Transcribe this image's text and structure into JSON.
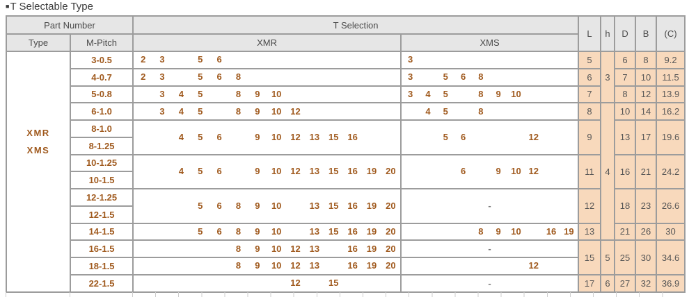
{
  "title": {
    "bullet": "■",
    "text": "T Selectable Type"
  },
  "colors": {
    "accent_text": "#a05a1e",
    "value_cell_bg": "#f8d9bc",
    "header_bg": "#e6e6e6",
    "border": "#9c9c9c",
    "header_text": "#4a4a4a",
    "value_text": "#565656"
  },
  "table": {
    "headers": {
      "part_number": "Part Number",
      "t_selection": "T Selection",
      "type": "Type",
      "m_pitch": "M-Pitch",
      "xmr": "XMR",
      "xms": "XMS",
      "L": "L",
      "h": "h",
      "D": "D",
      "B": "B",
      "C": "(C)"
    },
    "slot_columns": {
      "xmr": [
        2,
        3,
        4,
        5,
        6,
        8,
        9,
        10,
        12,
        13,
        15,
        16,
        19,
        20
      ],
      "xms": [
        3,
        4,
        5,
        6,
        8,
        9,
        10,
        12,
        16,
        19
      ]
    },
    "rows": [
      {
        "cells": [
          {
            "kind": "type",
            "rowspan": 14,
            "lines": [
              "XMR",
              "XMS"
            ]
          },
          {
            "kind": "mpitch",
            "text": "3-0.5"
          },
          {
            "kind": "slots",
            "grid": "xmr",
            "values": [
              2,
              3,
              5,
              6
            ]
          },
          {
            "kind": "slots",
            "grid": "xms",
            "values": [
              3
            ]
          },
          {
            "kind": "num",
            "col": "L",
            "text": "5"
          },
          {
            "kind": "num",
            "col": "h",
            "text": "3",
            "rowspan": 3
          },
          {
            "kind": "num",
            "col": "D",
            "text": "6"
          },
          {
            "kind": "num",
            "col": "B",
            "text": "8"
          },
          {
            "kind": "num",
            "col": "C",
            "text": "9.2"
          }
        ]
      },
      {
        "cells": [
          {
            "kind": "mpitch",
            "text": "4-0.7"
          },
          {
            "kind": "slots",
            "grid": "xmr",
            "values": [
              2,
              3,
              5,
              6,
              8
            ]
          },
          {
            "kind": "slots",
            "grid": "xms",
            "values": [
              3,
              5,
              6,
              8
            ]
          },
          {
            "kind": "num",
            "col": "L",
            "text": "6"
          },
          {
            "kind": "num",
            "col": "D",
            "text": "7"
          },
          {
            "kind": "num",
            "col": "B",
            "text": "10"
          },
          {
            "kind": "num",
            "col": "C",
            "text": "11.5"
          }
        ]
      },
      {
        "cells": [
          {
            "kind": "mpitch",
            "text": "5-0.8"
          },
          {
            "kind": "slots",
            "grid": "xmr",
            "values": [
              3,
              4,
              5,
              8,
              9,
              10
            ]
          },
          {
            "kind": "slots",
            "grid": "xms",
            "values": [
              3,
              4,
              5,
              8,
              9,
              10
            ]
          },
          {
            "kind": "num",
            "col": "L",
            "text": "7"
          },
          {
            "kind": "num",
            "col": "D",
            "text": "8"
          },
          {
            "kind": "num",
            "col": "B",
            "text": "12"
          },
          {
            "kind": "num",
            "col": "C",
            "text": "13.9"
          }
        ]
      },
      {
        "cells": [
          {
            "kind": "mpitch",
            "text": "6-1.0"
          },
          {
            "kind": "slots",
            "grid": "xmr",
            "values": [
              3,
              4,
              5,
              8,
              9,
              10,
              12
            ]
          },
          {
            "kind": "slots",
            "grid": "xms",
            "values": [
              4,
              5,
              8
            ]
          },
          {
            "kind": "num",
            "col": "L",
            "text": "8"
          },
          {
            "kind": "num",
            "col": "h",
            "text": "4",
            "rowspan": 8
          },
          {
            "kind": "num",
            "col": "D",
            "text": "10"
          },
          {
            "kind": "num",
            "col": "B",
            "text": "14"
          },
          {
            "kind": "num",
            "col": "C",
            "text": "16.2"
          }
        ]
      },
      {
        "cells": [
          {
            "kind": "mpitch",
            "text": "8-1.0"
          },
          {
            "kind": "slots",
            "grid": "xmr",
            "rowspan": 2,
            "values": [
              4,
              5,
              6,
              9,
              10,
              12,
              13,
              15,
              16
            ]
          },
          {
            "kind": "slots",
            "grid": "xms",
            "rowspan": 2,
            "values": [
              5,
              6,
              12
            ]
          },
          {
            "kind": "num",
            "col": "L",
            "text": "9",
            "rowspan": 2
          },
          {
            "kind": "num",
            "col": "D",
            "text": "13",
            "rowspan": 2
          },
          {
            "kind": "num",
            "col": "B",
            "text": "17",
            "rowspan": 2
          },
          {
            "kind": "num",
            "col": "C",
            "text": "19.6",
            "rowspan": 2
          }
        ]
      },
      {
        "cells": [
          {
            "kind": "mpitch",
            "text": "8-1.25"
          }
        ]
      },
      {
        "cells": [
          {
            "kind": "mpitch",
            "text": "10-1.25"
          },
          {
            "kind": "slots",
            "grid": "xmr",
            "rowspan": 2,
            "values": [
              4,
              5,
              6,
              9,
              10,
              12,
              13,
              15,
              16,
              19,
              20
            ]
          },
          {
            "kind": "slots",
            "grid": "xms",
            "rowspan": 2,
            "values": [
              6,
              9,
              10,
              12
            ]
          },
          {
            "kind": "num",
            "col": "L",
            "text": "11",
            "rowspan": 2
          },
          {
            "kind": "num",
            "col": "D",
            "text": "16",
            "rowspan": 2
          },
          {
            "kind": "num",
            "col": "B",
            "text": "21",
            "rowspan": 2
          },
          {
            "kind": "num",
            "col": "C",
            "text": "24.2",
            "rowspan": 2
          }
        ]
      },
      {
        "cells": [
          {
            "kind": "mpitch",
            "text": "10-1.5"
          }
        ]
      },
      {
        "cells": [
          {
            "kind": "mpitch",
            "text": "12-1.25"
          },
          {
            "kind": "slots",
            "grid": "xmr",
            "rowspan": 2,
            "values": [
              5,
              6,
              8,
              9,
              10,
              13,
              15,
              16,
              19,
              20
            ]
          },
          {
            "kind": "dash",
            "grid": "xms",
            "rowspan": 2,
            "text": "-"
          },
          {
            "kind": "num",
            "col": "L",
            "text": "12",
            "rowspan": 2
          },
          {
            "kind": "num",
            "col": "D",
            "text": "18",
            "rowspan": 2
          },
          {
            "kind": "num",
            "col": "B",
            "text": "23",
            "rowspan": 2
          },
          {
            "kind": "num",
            "col": "C",
            "text": "26.6",
            "rowspan": 2
          }
        ]
      },
      {
        "cells": [
          {
            "kind": "mpitch",
            "text": "12-1.5"
          }
        ]
      },
      {
        "cells": [
          {
            "kind": "mpitch",
            "text": "14-1.5"
          },
          {
            "kind": "slots",
            "grid": "xmr",
            "values": [
              5,
              6,
              8,
              9,
              10,
              13,
              15,
              16,
              19,
              20
            ]
          },
          {
            "kind": "slots",
            "grid": "xms",
            "values": [
              8,
              9,
              10,
              16,
              19
            ]
          },
          {
            "kind": "num",
            "col": "L",
            "text": "13"
          },
          {
            "kind": "num",
            "col": "D",
            "text": "21"
          },
          {
            "kind": "num",
            "col": "B",
            "text": "26"
          },
          {
            "kind": "num",
            "col": "C",
            "text": "30"
          }
        ]
      },
      {
        "cells": [
          {
            "kind": "mpitch",
            "text": "16-1.5"
          },
          {
            "kind": "slots",
            "grid": "xmr",
            "values": [
              8,
              9,
              10,
              12,
              13,
              16,
              19,
              20
            ]
          },
          {
            "kind": "dash",
            "grid": "xms",
            "text": "-"
          },
          {
            "kind": "num",
            "col": "L",
            "text": "15",
            "rowspan": 2
          },
          {
            "kind": "num",
            "col": "h",
            "text": "5",
            "rowspan": 2
          },
          {
            "kind": "num",
            "col": "D",
            "text": "25",
            "rowspan": 2
          },
          {
            "kind": "num",
            "col": "B",
            "text": "30",
            "rowspan": 2
          },
          {
            "kind": "num",
            "col": "C",
            "text": "34.6",
            "rowspan": 2
          }
        ]
      },
      {
        "cells": [
          {
            "kind": "mpitch",
            "text": "18-1.5"
          },
          {
            "kind": "slots",
            "grid": "xmr",
            "values": [
              8,
              9,
              10,
              12,
              13,
              16,
              19,
              20
            ]
          },
          {
            "kind": "slots",
            "grid": "xms",
            "values": [
              12
            ]
          }
        ]
      },
      {
        "cells": [
          {
            "kind": "mpitch",
            "text": "22-1.5"
          },
          {
            "kind": "slots",
            "grid": "xmr",
            "values": [
              12,
              15
            ]
          },
          {
            "kind": "dash",
            "grid": "xms",
            "text": "-"
          },
          {
            "kind": "num",
            "col": "L",
            "text": "17"
          },
          {
            "kind": "num",
            "col": "h",
            "text": "6"
          },
          {
            "kind": "num",
            "col": "D",
            "text": "27"
          },
          {
            "kind": "num",
            "col": "B",
            "text": "32"
          },
          {
            "kind": "num",
            "col": "C",
            "text": "36.9"
          }
        ]
      }
    ]
  }
}
